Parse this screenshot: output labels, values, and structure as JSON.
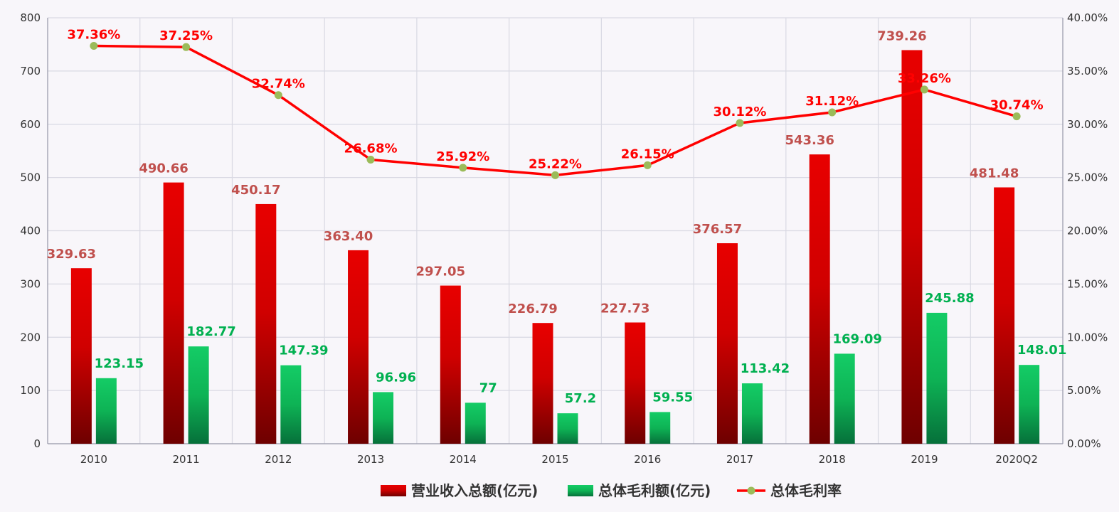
{
  "chart_data": {
    "type": "bar",
    "categories": [
      "2010",
      "2011",
      "2012",
      "2013",
      "2014",
      "2015",
      "2016",
      "2017",
      "2018",
      "2019",
      "2020Q2"
    ],
    "series": [
      {
        "name": "营业收入总额(亿元)",
        "type": "bar",
        "axis": "left",
        "values": [
          329.63,
          490.66,
          450.17,
          363.4,
          297.05,
          226.79,
          227.73,
          376.57,
          543.36,
          739.26,
          481.48
        ],
        "labels": [
          "329.63",
          "490.66",
          "450.17",
          "363.40",
          "297.05",
          "226.79",
          "227.73",
          "376.57",
          "543.36",
          "739.26",
          "481.48"
        ],
        "color": "#e00000",
        "label_color": "#c0504d"
      },
      {
        "name": "总体毛利额(亿元)",
        "type": "bar",
        "axis": "left",
        "values": [
          123.15,
          182.77,
          147.39,
          96.96,
          77,
          57.2,
          59.55,
          113.42,
          169.09,
          245.88,
          148.01
        ],
        "labels": [
          "123.15",
          "182.77",
          "147.39",
          "96.96",
          "77",
          "57.2",
          "59.55",
          "113.42",
          "169.09",
          "245.88",
          "148.01"
        ],
        "color": "#12c25e",
        "label_color": "#00b050"
      },
      {
        "name": "总体毛利率",
        "type": "line",
        "axis": "right",
        "values": [
          37.36,
          37.25,
          32.74,
          26.68,
          25.92,
          25.22,
          26.15,
          30.12,
          31.12,
          33.26,
          30.74
        ],
        "labels": [
          "37.36%",
          "37.25%",
          "32.74%",
          "26.68%",
          "25.92%",
          "25.22%",
          "26.15%",
          "30.12%",
          "31.12%",
          "33.26%",
          "30.74%"
        ],
        "color": "#ff0000",
        "marker_color": "#9bbb59"
      }
    ],
    "y_left": {
      "ylim": [
        0,
        800
      ],
      "ticks": [
        "0",
        "100",
        "200",
        "300",
        "400",
        "500",
        "600",
        "700",
        "800"
      ]
    },
    "y_right": {
      "ylim": [
        0,
        40
      ],
      "ticks": [
        "0.00%",
        "5.00%",
        "10.00%",
        "15.00%",
        "20.00%",
        "25.00%",
        "30.00%",
        "35.00%",
        "40.00%"
      ]
    },
    "grid": true,
    "legend_position": "bottom-center",
    "title": "",
    "xlabel": "",
    "ylabel": ""
  }
}
